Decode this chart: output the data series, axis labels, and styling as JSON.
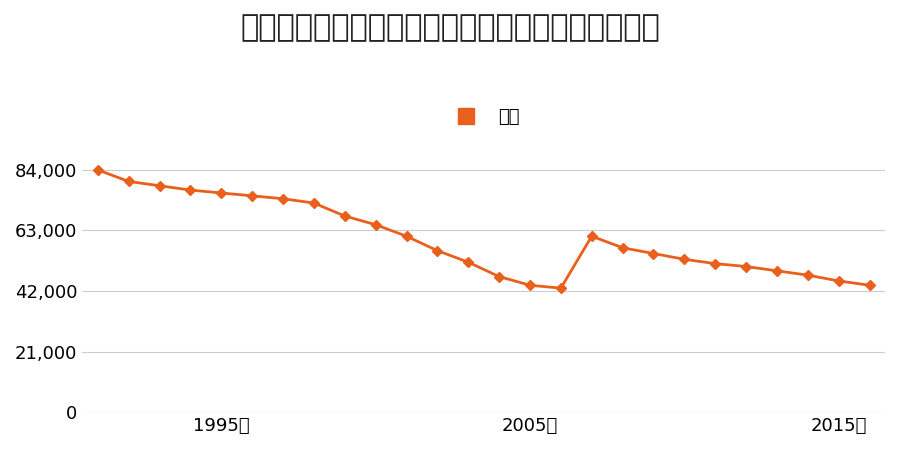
{
  "title": "宮城県仙台市宮城野区岩切字今市６５番の地価推移",
  "legend_label": "価格",
  "years": [
    1991,
    1992,
    1993,
    1994,
    1995,
    1996,
    1997,
    1998,
    1999,
    2000,
    2001,
    2002,
    2003,
    2004,
    2005,
    2006,
    2007,
    2008,
    2009,
    2010,
    2011,
    2012,
    2013,
    2014,
    2015,
    2016
  ],
  "values": [
    84000,
    80000,
    78500,
    77000,
    76000,
    75000,
    74000,
    72500,
    68000,
    65000,
    61000,
    56000,
    52000,
    47000,
    44000,
    43000,
    61000,
    57000,
    55000,
    53000,
    51500,
    50500,
    49000,
    47500,
    45500,
    44000
  ],
  "line_color": "#e8601c",
  "marker_color": "#e8601c",
  "background_color": "#ffffff",
  "grid_color": "#cccccc",
  "ylim": [
    0,
    91000
  ],
  "yticks": [
    0,
    21000,
    42000,
    63000,
    84000
  ],
  "ytick_labels": [
    "0",
    "21,000",
    "42,000",
    "63,000",
    "84,000"
  ],
  "xtick_years": [
    1995,
    2005,
    2015
  ],
  "xtick_labels": [
    "1995年",
    "2005年",
    "2015年"
  ],
  "title_fontsize": 22,
  "legend_fontsize": 13,
  "tick_fontsize": 13
}
